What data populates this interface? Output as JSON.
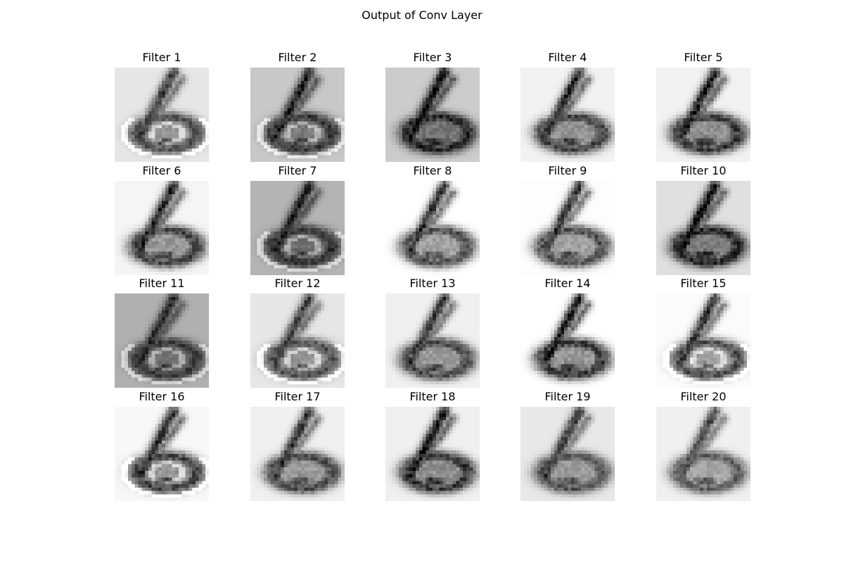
{
  "figure": {
    "title": "Output of Conv Layer",
    "colormap": "grayscale (dark = high activation)",
    "grid": {
      "rows": 4,
      "cols": 5
    }
  },
  "panels": [
    {
      "title": "Filter 1",
      "background": "#e6e6e6",
      "tone": "outlined",
      "ink": 0.75
    },
    {
      "title": "Filter 2",
      "background": "#c8c8c8",
      "tone": "outlined",
      "ink": 0.85
    },
    {
      "title": "Filter 3",
      "background": "#cccccc",
      "tone": "solid",
      "ink": 0.95
    },
    {
      "title": "Filter 4",
      "background": "#f2f2f2",
      "tone": "solid",
      "ink": 0.85
    },
    {
      "title": "Filter 5",
      "background": "#f2f2f2",
      "tone": "solid",
      "ink": 0.9
    },
    {
      "title": "Filter 6",
      "background": "#f5f5f5",
      "tone": "solid",
      "ink": 0.85
    },
    {
      "title": "Filter 7",
      "background": "#b4b4b4",
      "tone": "outlined",
      "ink": 0.85
    },
    {
      "title": "Filter 8",
      "background": "#ffffff",
      "tone": "solid",
      "ink": 0.8
    },
    {
      "title": "Filter 9",
      "background": "#fdfdfd",
      "tone": "solid",
      "ink": 0.8
    },
    {
      "title": "Filter 10",
      "background": "#e0e0e0",
      "tone": "solid",
      "ink": 0.95
    },
    {
      "title": "Filter 11",
      "background": "#b0b0b0",
      "tone": "outlined",
      "ink": 0.8
    },
    {
      "title": "Filter 12",
      "background": "#e6e6e6",
      "tone": "outlined",
      "ink": 0.75
    },
    {
      "title": "Filter 13",
      "background": "#f0f0f0",
      "tone": "solid",
      "ink": 0.8
    },
    {
      "title": "Filter 14",
      "background": "#ffffff",
      "tone": "solid",
      "ink": 0.9
    },
    {
      "title": "Filter 15",
      "background": "#fbfbfb",
      "tone": "outlined",
      "ink": 0.8
    },
    {
      "title": "Filter 16",
      "background": "#f8f8f8",
      "tone": "outlined",
      "ink": 0.85
    },
    {
      "title": "Filter 17",
      "background": "#f0f0f0",
      "tone": "solid",
      "ink": 0.8
    },
    {
      "title": "Filter 18",
      "background": "#f0f0f0",
      "tone": "solid",
      "ink": 0.9
    },
    {
      "title": "Filter 19",
      "background": "#e8e8e8",
      "tone": "solid",
      "ink": 0.75
    },
    {
      "title": "Filter 20",
      "background": "#f0f0f0",
      "tone": "solid",
      "ink": 0.7
    }
  ]
}
